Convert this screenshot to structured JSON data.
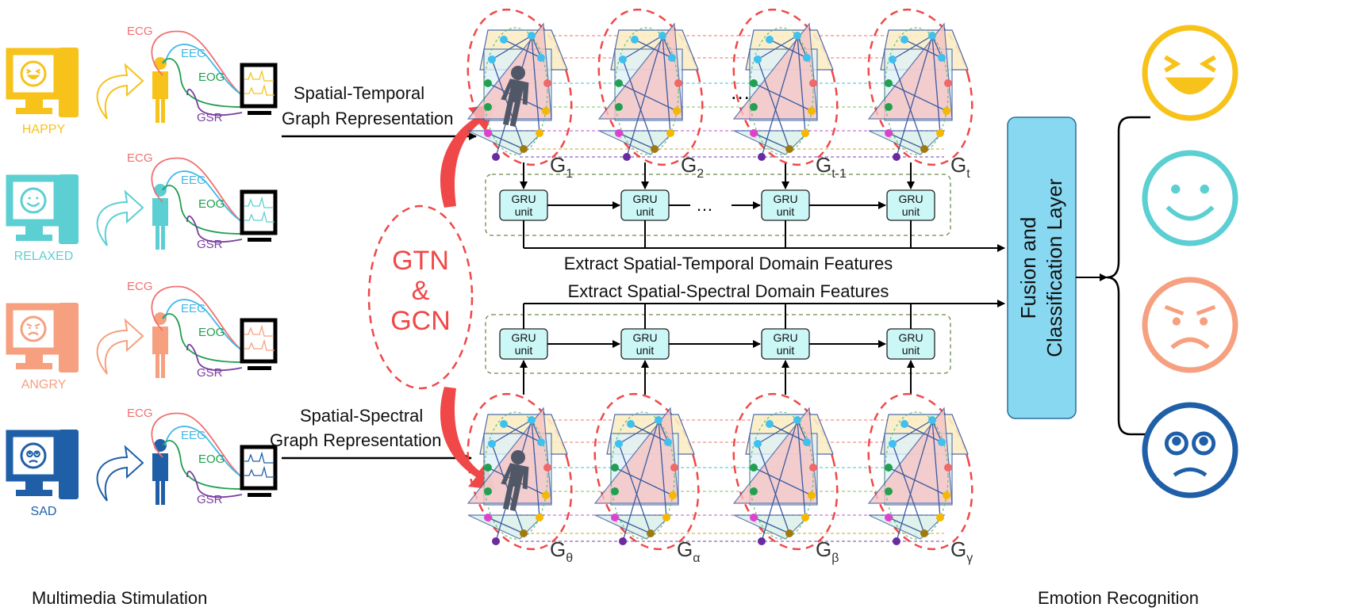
{
  "stimulation": {
    "title": "Multimedia Stimulation",
    "rows": [
      {
        "emotion": "HAPPY",
        "color": "#f7c21a",
        "face": "happy"
      },
      {
        "emotion": "RELAXED",
        "color": "#5ccfd3",
        "face": "smile"
      },
      {
        "emotion": "ANGRY",
        "color": "#f6a080",
        "face": "angry"
      },
      {
        "emotion": "SAD",
        "color": "#1f5fa8",
        "face": "sad"
      }
    ],
    "signals": [
      {
        "label": "ECG",
        "color": "#f07070"
      },
      {
        "label": "EEG",
        "color": "#3fb8e6"
      },
      {
        "label": "EOG",
        "color": "#20a050"
      },
      {
        "label": "GSR",
        "color": "#7a3fa0"
      }
    ]
  },
  "temporal": {
    "label_line1": "Spatial-Temporal",
    "label_line2": "Graph Representation",
    "graphs": [
      {
        "base": "G",
        "sub": "1"
      },
      {
        "base": "G",
        "sub": "2"
      },
      {
        "base": "G",
        "sub": "t-1"
      },
      {
        "base": "G",
        "sub": "t"
      }
    ],
    "ellipsis": "…",
    "features": "Extract Spatial-Temporal Domain Features"
  },
  "spectral": {
    "label_line1": "Spatial-Spectral",
    "label_line2": "Graph Representation",
    "graphs": [
      {
        "base": "G",
        "sub": "θ"
      },
      {
        "base": "G",
        "sub": "α"
      },
      {
        "base": "G",
        "sub": "β"
      },
      {
        "base": "G",
        "sub": "γ"
      }
    ],
    "features": "Extract  Spatial-Spectral  Domain Features"
  },
  "gru": {
    "line1": "GRU",
    "line2": "unit"
  },
  "center": {
    "line1": "GTN",
    "line2": "&",
    "line3": "GCN"
  },
  "fusion": {
    "line1": "Fusion and",
    "line2": "Classification Layer"
  },
  "recognition": {
    "title": "Emotion Recognition",
    "faces": [
      {
        "face": "happy",
        "color": "#f7c21a"
      },
      {
        "face": "smile",
        "color": "#5ccfd3"
      },
      {
        "face": "angry",
        "color": "#f6a080"
      },
      {
        "face": "sad",
        "color": "#1f5fa8"
      }
    ]
  },
  "colors": {
    "accent_red": "#f04848",
    "gru_fill": "#ccf7f7",
    "fusion_fill": "#88d8f2",
    "dashed_box": "#6a8a4a"
  }
}
